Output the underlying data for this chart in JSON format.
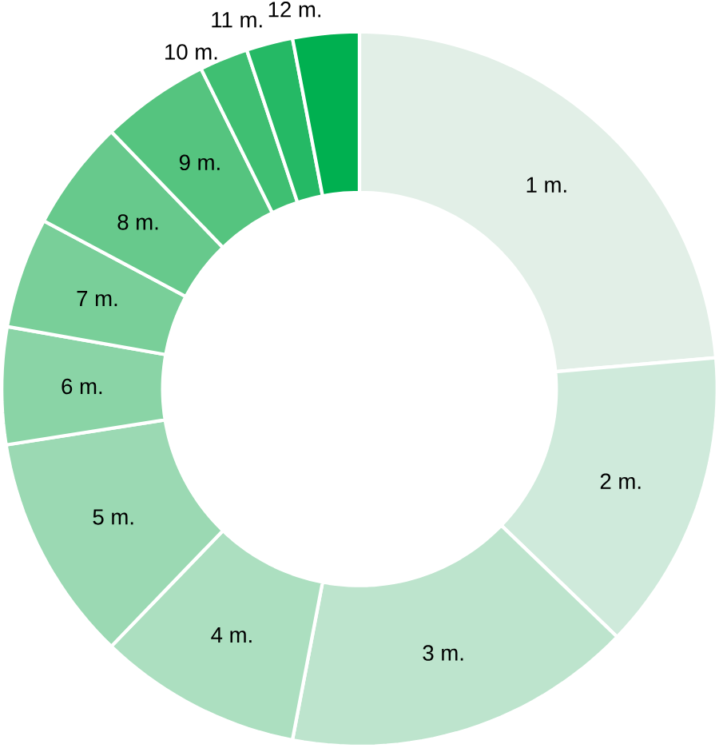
{
  "chart_data": {
    "type": "donut",
    "categories": [
      "1 m.",
      "2 m.",
      "3 m.",
      "4 m.",
      "5 m.",
      "6 m.",
      "7 m.",
      "8 m.",
      "9 m.",
      "10 m.",
      "11 m.",
      "12 m."
    ],
    "values": [
      23.6,
      13.6,
      15.8,
      9.2,
      10.3,
      5.3,
      5.0,
      5.0,
      4.9,
      2.2,
      2.1,
      3.0
    ],
    "colors": [
      "#e2efe7",
      "#cfeadb",
      "#bde4cd",
      "#acdfc0",
      "#9bd9b3",
      "#8ad4a6",
      "#79cf99",
      "#67c98c",
      "#55c47f",
      "#3fbf72",
      "#25b965",
      "#00b050"
    ]
  }
}
